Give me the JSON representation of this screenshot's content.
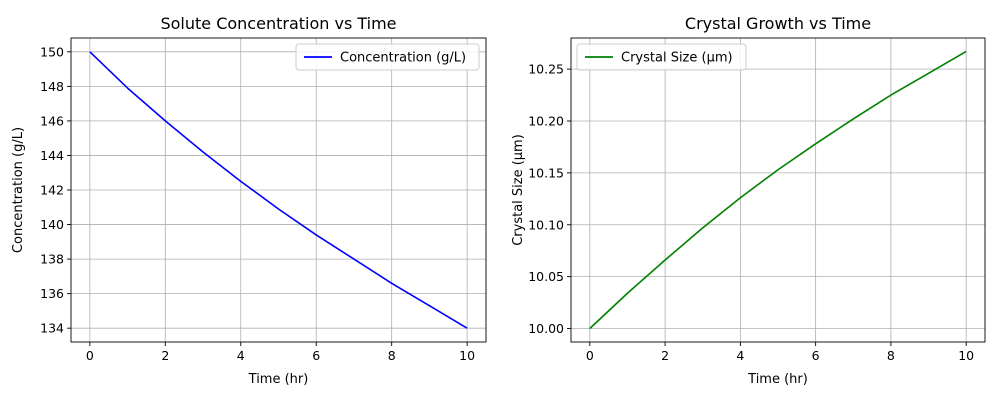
{
  "chart_data": [
    {
      "type": "line",
      "title": "Solute Concentration vs Time",
      "xlabel": "Time (hr)",
      "ylabel": "Concentration (g/L)",
      "xlim": [
        -0.5,
        10.5
      ],
      "ylim": [
        133.2,
        150.8
      ],
      "xticks": [
        0,
        2,
        4,
        6,
        8,
        10
      ],
      "xtick_labels": [
        "0",
        "2",
        "4",
        "6",
        "8",
        "10"
      ],
      "yticks": [
        134,
        136,
        138,
        140,
        142,
        144,
        146,
        148,
        150
      ],
      "ytick_labels": [
        "134",
        "136",
        "138",
        "140",
        "142",
        "144",
        "146",
        "148",
        "150"
      ],
      "grid": true,
      "legend_position": "top-right",
      "series": [
        {
          "name": "Concentration (g/L)",
          "color": "#0000ff",
          "x": [
            0,
            1,
            2,
            3,
            4,
            5,
            6,
            7,
            8,
            9,
            10
          ],
          "values": [
            150.0,
            147.9,
            146.0,
            144.2,
            142.5,
            140.9,
            139.4,
            138.0,
            136.6,
            135.3,
            134.0
          ]
        }
      ]
    },
    {
      "type": "line",
      "title": "Crystal Growth vs Time",
      "xlabel": "Time (hr)",
      "ylabel": "Crystal Size (µm)",
      "xlim": [
        -0.5,
        10.5
      ],
      "ylim": [
        9.987,
        10.28
      ],
      "xticks": [
        0,
        2,
        4,
        6,
        8,
        10
      ],
      "xtick_labels": [
        "0",
        "2",
        "4",
        "6",
        "8",
        "10"
      ],
      "yticks": [
        10.0,
        10.05,
        10.1,
        10.15,
        10.2,
        10.25
      ],
      "ytick_labels": [
        "10.00",
        "10.05",
        "10.10",
        "10.15",
        "10.20",
        "10.25"
      ],
      "grid": true,
      "legend_position": "top-left",
      "series": [
        {
          "name": "Crystal Size (µm)",
          "color": "#008000",
          "x": [
            0,
            1,
            2,
            3,
            4,
            5,
            6,
            7,
            8,
            9,
            10
          ],
          "values": [
            10.0,
            10.034,
            10.066,
            10.097,
            10.126,
            10.153,
            10.178,
            10.202,
            10.225,
            10.246,
            10.267
          ]
        }
      ]
    }
  ]
}
